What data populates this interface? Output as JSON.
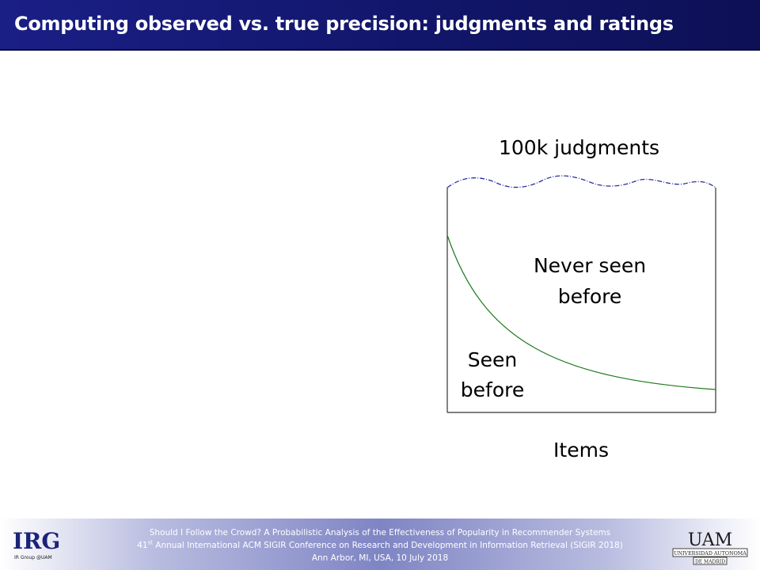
{
  "header": {
    "title": "Computing observed vs. true precision: judgments and ratings"
  },
  "diagram": {
    "top_label": "100k judgments",
    "upper_region_label_line1": "Never seen",
    "upper_region_label_line2": "before",
    "lower_region_label_line1": "Seen",
    "lower_region_label_line2": "before",
    "x_axis_label": "Items",
    "colors": {
      "curve": "#1e7a1e",
      "wavy_top": "#2b2f9c",
      "box": "#333333"
    }
  },
  "footer": {
    "line1": "Should I Follow the Crowd? A Probabilistic Analysis of the Effectiveness of Popularity in Recommender Systems",
    "line2_num": "41",
    "line2_sup": "st",
    "line2_rest": " Annual International ACM SIGIR Conference on Research and Development in Information Retrieval (SIGIR 2018)",
    "line3": "Ann Arbor, MI, USA, 10 July 2018",
    "irg_logo_text": "IRG",
    "irg_logo_subtext": "IR Group @UAM",
    "uam_logo_text": "UAM",
    "uam_logo_subtext1": "UNIVERSIDAD AUTONOMA",
    "uam_logo_subtext2": "DE MADRID"
  }
}
